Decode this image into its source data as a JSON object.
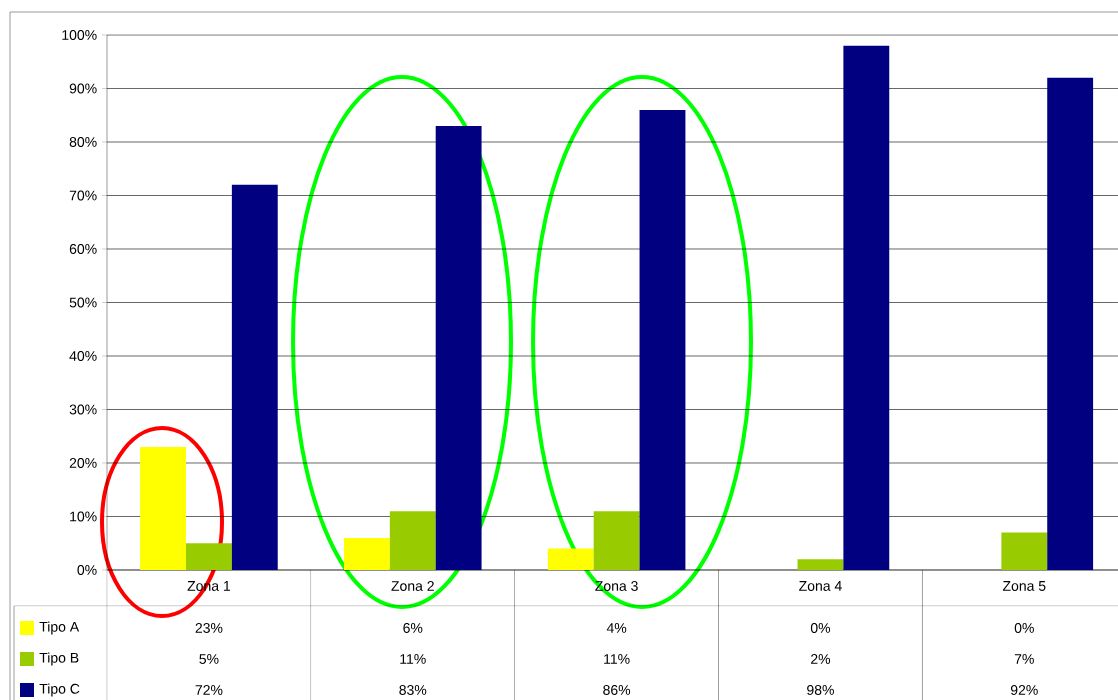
{
  "chart_data": {
    "type": "bar",
    "categories": [
      "Zona 1",
      "Zona 2",
      "Zona 3",
      "Zona 4",
      "Zona 5"
    ],
    "series": [
      {
        "name": "Tipo A",
        "color": "#ffff00",
        "values": [
          23,
          6,
          4,
          0,
          0
        ],
        "value_labels": [
          "23%",
          "6%",
          "4%",
          "0%",
          "0%"
        ]
      },
      {
        "name": "Tipo B",
        "color": "#99cc00",
        "values": [
          5,
          11,
          11,
          2,
          7
        ],
        "value_labels": [
          "5%",
          "11%",
          "11%",
          "2%",
          "7%"
        ]
      },
      {
        "name": "Tipo C",
        "color": "#000080",
        "values": [
          72,
          83,
          86,
          98,
          92
        ],
        "value_labels": [
          "72%",
          "83%",
          "86%",
          "98%",
          "92%"
        ]
      }
    ],
    "ylim": [
      0,
      100
    ],
    "yticks": [
      {
        "value": 0,
        "label": "0%"
      },
      {
        "value": 10,
        "label": "10%"
      },
      {
        "value": 20,
        "label": "20%"
      },
      {
        "value": 30,
        "label": "30%"
      },
      {
        "value": 40,
        "label": "40%"
      },
      {
        "value": 50,
        "label": "50%"
      },
      {
        "value": 60,
        "label": "60%"
      },
      {
        "value": 70,
        "label": "70%"
      },
      {
        "value": 80,
        "label": "80%"
      },
      {
        "value": 90,
        "label": "90%"
      },
      {
        "value": 100,
        "label": "100%"
      }
    ],
    "grid": "y",
    "legend": "bottom left"
  }
}
